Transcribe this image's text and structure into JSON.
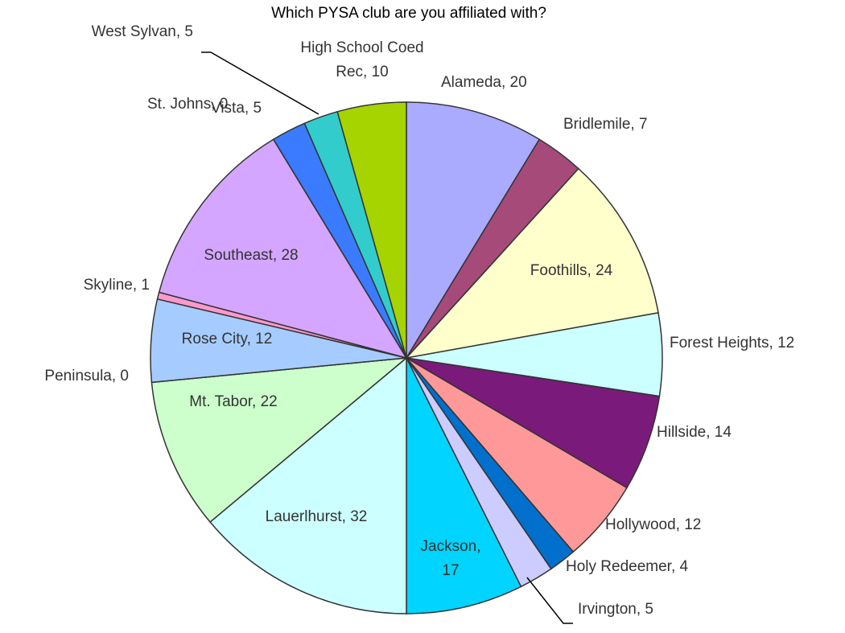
{
  "chart_data": {
    "type": "pie",
    "title": "Which PYSA club are you affiliated with?",
    "values": [
      20,
      7,
      24,
      12,
      14,
      12,
      4,
      5,
      17,
      32,
      22,
      0,
      12,
      1,
      28,
      0,
      5,
      5,
      10
    ],
    "value_labels": [
      "Alameda, 20",
      "Bridlemile, 7",
      "Foothills, 24",
      "Forest Heights, 12",
      "Hillside, 14",
      "Hollywood, 12",
      "Holy Redeemer, 4",
      "Irvington, 5",
      "Jackson,\n17",
      "Lauerlhurst, 32",
      "Mt. Tabor, 22",
      "Peninsula, 0",
      "Rose City, 12",
      "Skyline, 1",
      "Southeast, 28",
      "St. Johns, 0",
      "Vista, 5",
      "West Sylvan, 5",
      "High School Coed\nRec, 10"
    ],
    "colors": [
      "#aaaaff",
      "#a64a7a",
      "#ffffcc",
      "#ccffff",
      "#7a1a7a",
      "#ff9999",
      "#0070cc",
      "#ccccff",
      "#00d4ff",
      "#ccffff",
      "#ccffcc",
      "#ffff99",
      "#a6ccff",
      "#ff99cc",
      "#d4a6ff",
      "#ff9966",
      "#3b7bff",
      "#33cccc",
      "#a6d400"
    ]
  }
}
